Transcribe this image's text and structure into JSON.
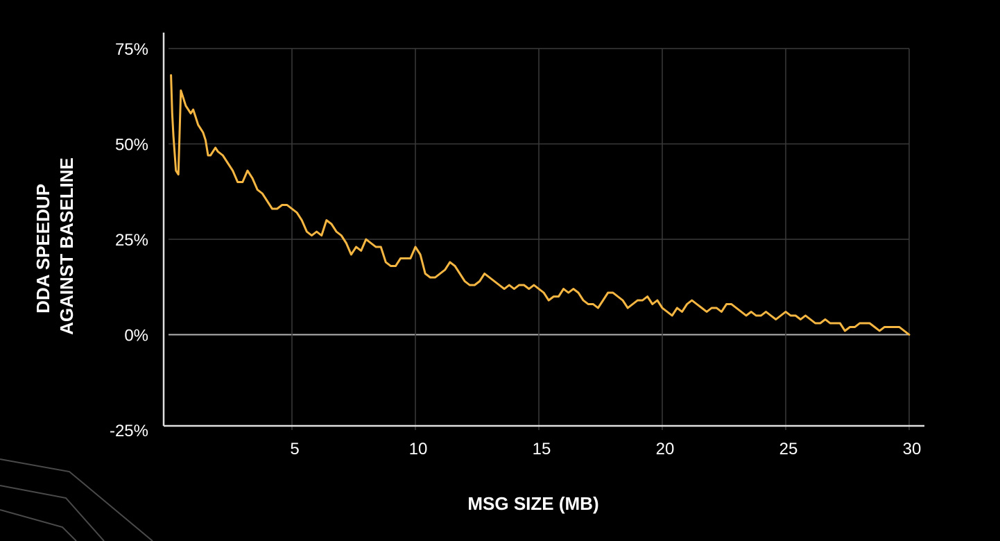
{
  "chart_data": {
    "type": "line",
    "title": "",
    "xlabel": "MSG SIZE (MB)",
    "ylabel_lines": [
      "DDA SPEEDUP",
      "AGAINST BASELINE"
    ],
    "xlim": [
      0,
      30
    ],
    "ylim": [
      -25,
      75
    ],
    "x_ticks": [
      5,
      10,
      15,
      20,
      25,
      30
    ],
    "x_tick_labels": [
      "5",
      "10",
      "15",
      "20",
      "25",
      "30"
    ],
    "y_ticks": [
      75,
      50,
      25,
      0,
      -25
    ],
    "y_tick_labels": [
      "75%",
      "50%",
      "25%",
      "0%",
      "-25%"
    ],
    "grid": true,
    "legend": "none",
    "colors": {
      "background": "#000000",
      "grid": "#3a3a3a",
      "zero_line": "#b5b5b5",
      "axis": "#e0e0e0",
      "series": "#f5b642",
      "decoration": "#4a4a4a"
    },
    "series": [
      {
        "x": [
          0.1,
          0.15,
          0.2,
          0.3,
          0.4,
          0.5,
          0.6,
          0.7,
          0.8,
          0.9,
          1.0,
          1.1,
          1.2,
          1.3,
          1.4,
          1.5,
          1.6,
          1.7,
          1.8,
          1.9,
          2.0,
          2.2,
          2.4,
          2.6,
          2.8,
          3.0,
          3.2,
          3.4,
          3.6,
          3.8,
          4.0,
          4.2,
          4.4,
          4.6,
          4.8,
          5.0,
          5.2,
          5.4,
          5.6,
          5.8,
          6.0,
          6.2,
          6.4,
          6.6,
          6.8,
          7.0,
          7.2,
          7.4,
          7.6,
          7.8,
          8.0,
          8.2,
          8.4,
          8.6,
          8.8,
          9.0,
          9.2,
          9.4,
          9.6,
          9.8,
          10.0,
          10.2,
          10.4,
          10.6,
          10.8,
          11.0,
          11.2,
          11.4,
          11.6,
          11.8,
          12.0,
          12.2,
          12.4,
          12.6,
          12.8,
          13.0,
          13.2,
          13.4,
          13.6,
          13.8,
          14.0,
          14.2,
          14.4,
          14.6,
          14.8,
          15.0,
          15.2,
          15.4,
          15.6,
          15.8,
          16.0,
          16.2,
          16.4,
          16.6,
          16.8,
          17.0,
          17.2,
          17.4,
          17.6,
          17.8,
          18.0,
          18.2,
          18.4,
          18.6,
          18.8,
          19.0,
          19.2,
          19.4,
          19.6,
          19.8,
          20.0,
          20.2,
          20.4,
          20.6,
          20.8,
          21.0,
          21.2,
          21.4,
          21.6,
          21.8,
          22.0,
          22.2,
          22.4,
          22.6,
          22.8,
          23.0,
          23.2,
          23.4,
          23.6,
          23.8,
          24.0,
          24.2,
          24.4,
          24.6,
          24.8,
          25.0,
          25.2,
          25.4,
          25.6,
          25.8,
          26.0,
          26.2,
          26.4,
          26.6,
          26.8,
          27.0,
          27.2,
          27.4,
          27.6,
          27.8,
          28.0,
          28.2,
          28.4,
          28.6,
          28.8,
          29.0,
          29.2,
          29.4,
          29.6,
          29.8,
          30.0
        ],
        "values": [
          68,
          58,
          52,
          43,
          42,
          64,
          62,
          60,
          59,
          58,
          59,
          57,
          55,
          54,
          53,
          51,
          47,
          47,
          48,
          49,
          48,
          47,
          45,
          43,
          40,
          40,
          43,
          41,
          38,
          37,
          35,
          33,
          33,
          34,
          34,
          33,
          32,
          30,
          27,
          26,
          27,
          26,
          30,
          29,
          27,
          26,
          24,
          21,
          23,
          22,
          25,
          24,
          23,
          23,
          19,
          18,
          18,
          20,
          20,
          20,
          23,
          21,
          16,
          15,
          15,
          16,
          17,
          19,
          18,
          16,
          14,
          13,
          13,
          14,
          16,
          15,
          14,
          13,
          12,
          13,
          12,
          13,
          13,
          12,
          13,
          12,
          11,
          9,
          10,
          10,
          12,
          11,
          12,
          11,
          9,
          8,
          8,
          7,
          9,
          11,
          11,
          10,
          9,
          7,
          8,
          9,
          9,
          10,
          8,
          9,
          7,
          6,
          5,
          7,
          6,
          8,
          9,
          8,
          7,
          6,
          7,
          7,
          6,
          8,
          8,
          7,
          6,
          5,
          6,
          5,
          5,
          6,
          5,
          4,
          5,
          6,
          5,
          5,
          4,
          5,
          4,
          3,
          3,
          4,
          3,
          3,
          3,
          1,
          2,
          2,
          3,
          3,
          3,
          2,
          1,
          2,
          2,
          2,
          2,
          1,
          0
        ]
      }
    ]
  }
}
